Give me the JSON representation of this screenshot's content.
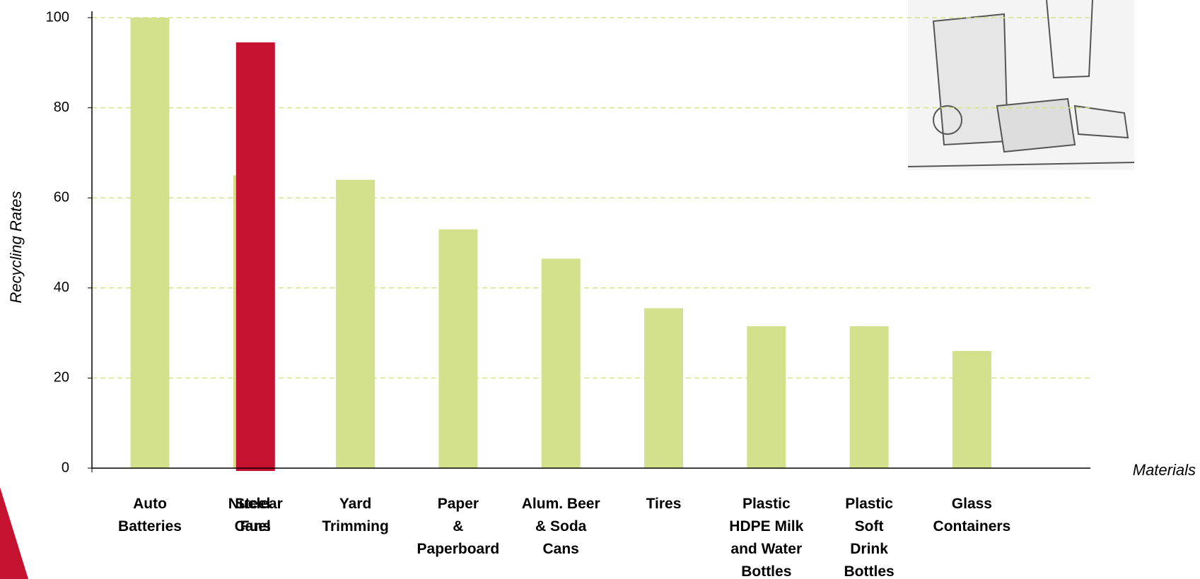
{
  "chart_data": {
    "type": "bar",
    "y_label": "Recycling Rates",
    "x_label": "Materials",
    "categories": [
      "Auto\nBatteries",
      "Steel\nCans",
      "Yard\nTrimming",
      "Paper\n&\nPaperboard",
      "Alum. Beer\n& Soda\nCans",
      "Tires",
      "Plastic\nHDPE Milk\nand Water\nBottles",
      "Plastic\nSoft\nDrink\nBottles",
      "Glass\nContainers"
    ],
    "values": [
      100,
      65,
      64,
      53,
      46.5,
      35.5,
      31.5,
      31.5,
      26
    ],
    "color": "#d4e18c",
    "highlight": {
      "name": "Nuclear\nFuel",
      "value": 94.5,
      "color": "#c41230"
    },
    "ylim": [
      0,
      100
    ],
    "yticks": [
      0,
      20,
      40,
      60,
      80,
      100
    ],
    "grid": true
  }
}
